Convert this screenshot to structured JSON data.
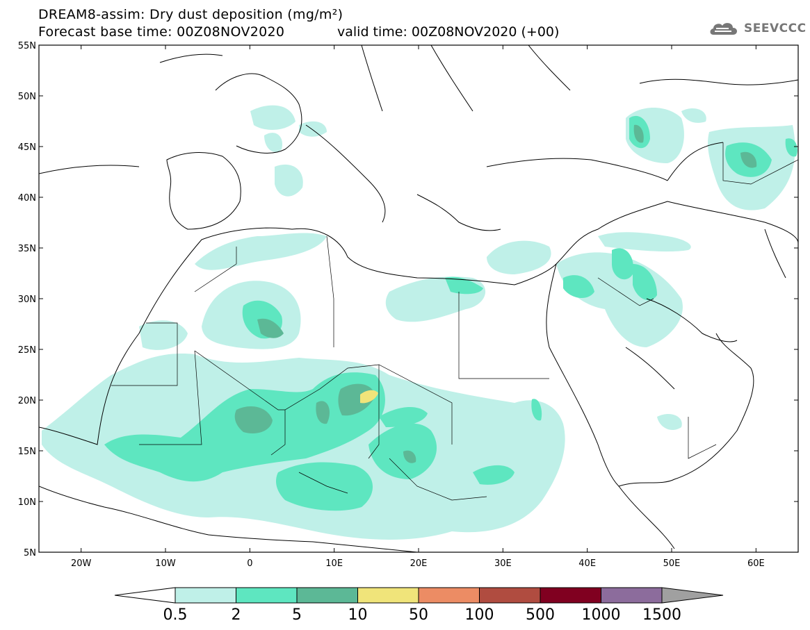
{
  "header": {
    "title_line1": "DREAM8-assim: Dry dust deposition (mg/m²)",
    "title_line2": "Forecast base time: 00Z08NOV2020",
    "title_line3": "valid time: 00Z08NOV2020 (+00)",
    "logo_text": "SEEVCCC"
  },
  "map": {
    "lat_labels": [
      "55N",
      "50N",
      "45N",
      "40N",
      "35N",
      "30N",
      "25N",
      "20N",
      "15N",
      "10N",
      "5N"
    ],
    "lon_labels": [
      "20W",
      "10W",
      "0",
      "10E",
      "20E",
      "30E",
      "40E",
      "50E",
      "60E"
    ],
    "lon_range": [
      -25,
      65
    ],
    "lat_range": [
      5,
      55
    ]
  },
  "colorbar": {
    "labels": [
      "0.5",
      "2",
      "5",
      "10",
      "50",
      "100",
      "500",
      "1000",
      "1500"
    ],
    "colors": [
      "#bff0e8",
      "#5ee6c0",
      "#5cb896",
      "#f0e47a",
      "#ec8c64",
      "#b04c40",
      "#800020",
      "#8c6c9c"
    ],
    "under_color": "#ffffff",
    "over_color": "#a0a0a0"
  }
}
